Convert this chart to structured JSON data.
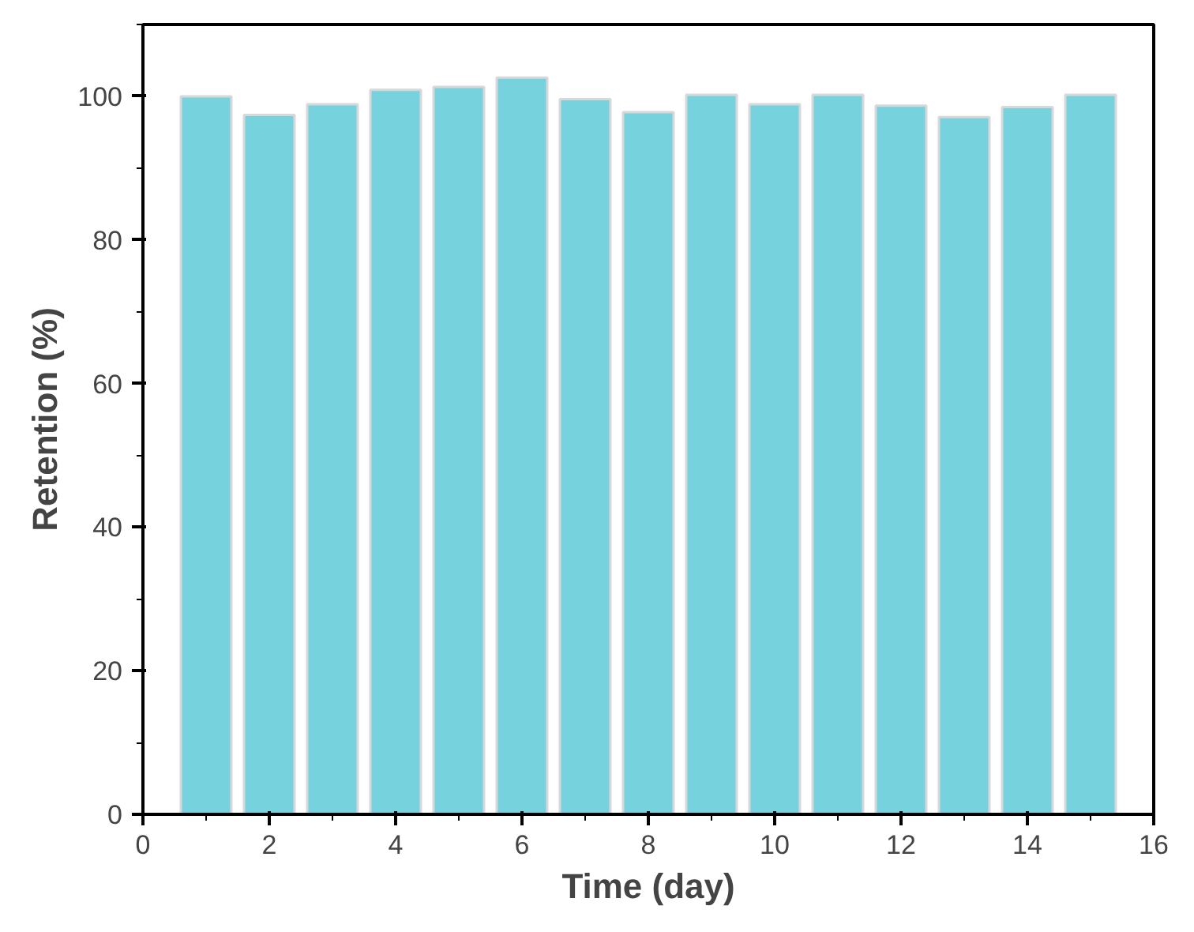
{
  "chart_data": {
    "type": "bar",
    "xlabel": "Time (day)",
    "ylabel": "Retention (%)",
    "x": [
      1,
      2,
      3,
      4,
      5,
      6,
      7,
      8,
      9,
      10,
      11,
      12,
      13,
      14,
      15
    ],
    "values": [
      100,
      97.4,
      98.9,
      100.9,
      101.3,
      102.6,
      99.6,
      97.8,
      100.2,
      98.9,
      100.2,
      98.7,
      97.1,
      98.5,
      100.2
    ],
    "color": "#76d2dc",
    "xlim": [
      0,
      16
    ],
    "xticks": [
      0,
      2,
      4,
      6,
      8,
      10,
      12,
      14,
      16
    ],
    "ylim": [
      0,
      110
    ],
    "yticks": [
      0,
      20,
      40,
      60,
      80,
      100
    ],
    "grid": false
  }
}
